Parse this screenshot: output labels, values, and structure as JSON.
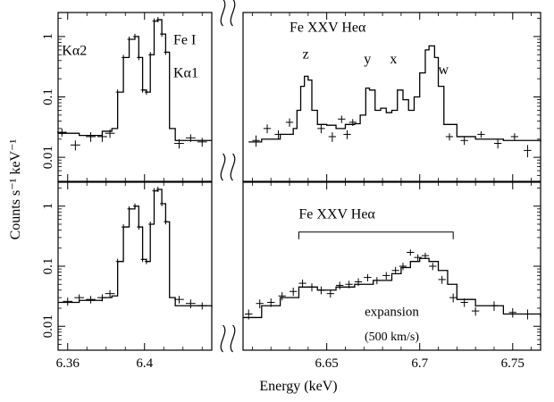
{
  "figure": {
    "ylabel": "Counts s⁻¹ keV⁻¹",
    "xlabel": "Energy (keV)"
  },
  "chart_data": [
    {
      "type": "line",
      "panel": "top",
      "yscale": "log",
      "ylim": [
        0.004,
        2.5
      ],
      "ytick_values": [
        0.01,
        0.1,
        1
      ],
      "ytick_labels": [
        "0.01",
        "0.1",
        "1"
      ],
      "xlim_left": [
        6.355,
        6.435
      ],
      "xlim_right": [
        6.605,
        6.765
      ],
      "model_left": {
        "x": [
          6.355,
          6.366,
          6.378,
          6.383,
          6.386,
          6.389,
          6.392,
          6.395,
          6.397,
          6.399,
          6.401,
          6.403,
          6.405,
          6.407,
          6.409,
          6.411,
          6.413,
          6.416,
          6.435
        ],
        "y": [
          0.025,
          0.023,
          0.027,
          0.03,
          0.12,
          0.45,
          0.9,
          1.0,
          0.45,
          0.13,
          0.12,
          0.5,
          1.8,
          1.9,
          1.1,
          0.55,
          0.03,
          0.019,
          0.019
        ]
      },
      "model_right": {
        "x": [
          6.608,
          6.615,
          6.625,
          6.632,
          6.634,
          6.636,
          6.638,
          6.64,
          6.642,
          6.645,
          6.65,
          6.655,
          6.66,
          6.665,
          6.668,
          6.671,
          6.673,
          6.676,
          6.679,
          6.682,
          6.685,
          6.688,
          6.691,
          6.694,
          6.697,
          6.7,
          6.703,
          6.705,
          6.708,
          6.71,
          6.713,
          6.72,
          6.73,
          6.745,
          6.765
        ],
        "y": [
          0.018,
          0.02,
          0.024,
          0.03,
          0.06,
          0.15,
          0.22,
          0.19,
          0.06,
          0.035,
          0.034,
          0.03,
          0.035,
          0.036,
          0.05,
          0.14,
          0.13,
          0.06,
          0.065,
          0.055,
          0.06,
          0.13,
          0.09,
          0.06,
          0.1,
          0.25,
          0.6,
          0.7,
          0.45,
          0.15,
          0.035,
          0.022,
          0.02,
          0.019,
          0.018
        ]
      },
      "data_left": {
        "x": [
          6.357,
          6.364,
          6.372,
          6.378,
          6.382,
          6.418,
          6.424,
          6.43
        ],
        "y": [
          0.026,
          0.016,
          0.022,
          0.022,
          0.025,
          0.017,
          0.021,
          0.018
        ],
        "xerr": [
          0.0025,
          0.0025,
          0.0025,
          0.0025,
          0.0025,
          0.0025,
          0.0025,
          0.0025
        ],
        "yerr": [
          0.004,
          0.003,
          0.004,
          0.004,
          0.004,
          0.003,
          0.003,
          0.003
        ]
      },
      "data_right": {
        "x": [
          6.612,
          6.618,
          6.624,
          6.63,
          6.647,
          6.653,
          6.658,
          6.661,
          6.664,
          6.716,
          6.724,
          6.733,
          6.742,
          6.751,
          6.758
        ],
        "y": [
          0.019,
          0.03,
          0.024,
          0.038,
          0.03,
          0.022,
          0.043,
          0.024,
          0.038,
          0.022,
          0.019,
          0.024,
          0.017,
          0.022,
          0.013
        ],
        "xerr": [
          0.002,
          0.002,
          0.002,
          0.002,
          0.002,
          0.002,
          0.002,
          0.002,
          0.002,
          0.002,
          0.002,
          0.002,
          0.002,
          0.002,
          0.002
        ],
        "yerr": [
          0.004,
          0.005,
          0.004,
          0.006,
          0.005,
          0.004,
          0.006,
          0.004,
          0.005,
          0.003,
          0.003,
          0.003,
          0.003,
          0.003,
          0.003
        ]
      },
      "annotations": [
        {
          "text": "Kα2",
          "x": 6.357,
          "y": 0.5
        },
        {
          "text": "Fe I",
          "x": 6.415,
          "y": 0.75
        },
        {
          "text": "Kα1",
          "x": 6.415,
          "y": 0.21
        },
        {
          "text": "Fe XXV Heα",
          "x": 6.63,
          "y": 1.2
        },
        {
          "text": "z",
          "x": 6.637,
          "y": 0.43
        },
        {
          "text": "y",
          "x": 6.67,
          "y": 0.36
        },
        {
          "text": "x",
          "x": 6.684,
          "y": 0.36
        },
        {
          "text": "w",
          "x": 6.71,
          "y": 0.24
        }
      ]
    },
    {
      "type": "line",
      "panel": "bottom",
      "yscale": "log",
      "ylim": [
        0.004,
        2.5
      ],
      "ytick_values": [
        0.01,
        0.1,
        1
      ],
      "ytick_labels": [
        "0.01",
        "0.1",
        "1"
      ],
      "xlim_left": [
        6.355,
        6.435
      ],
      "xlim_right": [
        6.605,
        6.765
      ],
      "xtick_values_left": [
        6.36,
        6.4
      ],
      "xtick_labels_left": [
        "6.36",
        "6.4"
      ],
      "xtick_values_right": [
        6.65,
        6.7,
        6.75
      ],
      "xtick_labels_right": [
        "6.65",
        "6.7",
        "6.75"
      ],
      "model_left": {
        "x": [
          6.355,
          6.366,
          6.378,
          6.383,
          6.386,
          6.389,
          6.392,
          6.395,
          6.397,
          6.399,
          6.401,
          6.403,
          6.405,
          6.407,
          6.409,
          6.411,
          6.413,
          6.416,
          6.435
        ],
        "y": [
          0.025,
          0.027,
          0.03,
          0.032,
          0.12,
          0.45,
          0.9,
          1.0,
          0.45,
          0.13,
          0.12,
          0.5,
          1.8,
          1.9,
          1.1,
          0.55,
          0.03,
          0.022,
          0.021
        ]
      },
      "model_right": {
        "x": [
          6.605,
          6.615,
          6.625,
          6.635,
          6.645,
          6.655,
          6.665,
          6.675,
          6.685,
          6.69,
          6.695,
          6.7,
          6.705,
          6.71,
          6.715,
          6.72,
          6.73,
          6.745,
          6.765
        ],
        "y": [
          0.014,
          0.022,
          0.03,
          0.045,
          0.04,
          0.045,
          0.05,
          0.058,
          0.075,
          0.095,
          0.12,
          0.135,
          0.12,
          0.085,
          0.05,
          0.028,
          0.022,
          0.016,
          0.014
        ]
      },
      "data_left": {
        "x": [
          6.36,
          6.366,
          6.372,
          6.378,
          6.382,
          6.418,
          6.424,
          6.43
        ],
        "y": [
          0.026,
          0.03,
          0.028,
          0.03,
          0.035,
          0.028,
          0.024,
          0.022
        ],
        "xerr": [
          0.0025,
          0.0025,
          0.0025,
          0.0025,
          0.0025,
          0.0025,
          0.0025,
          0.0025
        ],
        "yerr": [
          0.004,
          0.004,
          0.004,
          0.004,
          0.005,
          0.004,
          0.004,
          0.003
        ]
      },
      "data_right": {
        "x": [
          6.608,
          6.614,
          6.62,
          6.626,
          6.632,
          6.637,
          6.642,
          6.647,
          6.652,
          6.657,
          6.662,
          6.667,
          6.672,
          6.677,
          6.682,
          6.687,
          6.691,
          6.695,
          6.699,
          6.703,
          6.707,
          6.712,
          6.718,
          6.724,
          6.73,
          6.74,
          6.75,
          6.758
        ],
        "y": [
          0.016,
          0.024,
          0.025,
          0.032,
          0.038,
          0.052,
          0.045,
          0.04,
          0.035,
          0.048,
          0.05,
          0.055,
          0.065,
          0.058,
          0.07,
          0.085,
          0.1,
          0.17,
          0.14,
          0.15,
          0.1,
          0.06,
          0.03,
          0.025,
          0.018,
          0.022,
          0.017,
          0.016
        ],
        "xerr": [
          0.002,
          0.002,
          0.002,
          0.002,
          0.002,
          0.002,
          0.002,
          0.002,
          0.002,
          0.002,
          0.002,
          0.002,
          0.002,
          0.002,
          0.002,
          0.002,
          0.002,
          0.002,
          0.002,
          0.002,
          0.002,
          0.002,
          0.002,
          0.002,
          0.002,
          0.002,
          0.002,
          0.002
        ],
        "yerr": [
          0.003,
          0.004,
          0.004,
          0.005,
          0.006,
          0.008,
          0.007,
          0.006,
          0.005,
          0.007,
          0.007,
          0.008,
          0.009,
          0.008,
          0.01,
          0.012,
          0.014,
          0.02,
          0.018,
          0.018,
          0.014,
          0.009,
          0.005,
          0.004,
          0.003,
          0.004,
          0.003,
          0.003
        ]
      },
      "annotations": [
        {
          "text": "Fe XXV Heα",
          "x": 6.635,
          "y": 0.62
        },
        {
          "text": "expansion",
          "x": 6.685,
          "y": 0.015
        },
        {
          "text": "(500 km/s)",
          "x": 6.685,
          "y": 0.0058
        }
      ],
      "bracket": {
        "x_start": 6.635,
        "x_end": 6.718,
        "y": 0.37
      }
    }
  ]
}
